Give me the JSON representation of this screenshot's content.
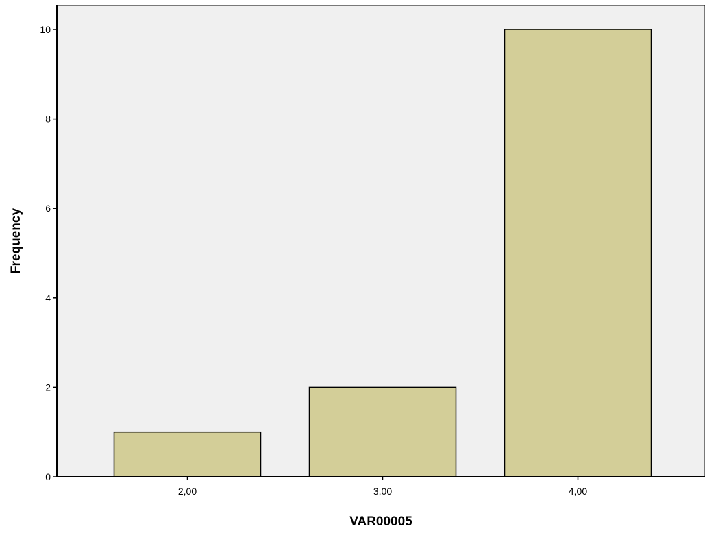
{
  "chart_data": {
    "type": "bar",
    "categories": [
      "2,00",
      "3,00",
      "4,00"
    ],
    "values": [
      1,
      2,
      10
    ],
    "xlabel": "VAR00005",
    "ylabel": "Frequency",
    "ylim": [
      0,
      10
    ],
    "yticks": [
      0,
      2,
      4,
      6,
      8,
      10
    ],
    "grid": false,
    "legend": "none",
    "colors": {
      "bar_fill": "#d3ce98",
      "bar_stroke": "#000000",
      "plot_bg": "#f0f0f0",
      "axis": "#000000"
    }
  }
}
